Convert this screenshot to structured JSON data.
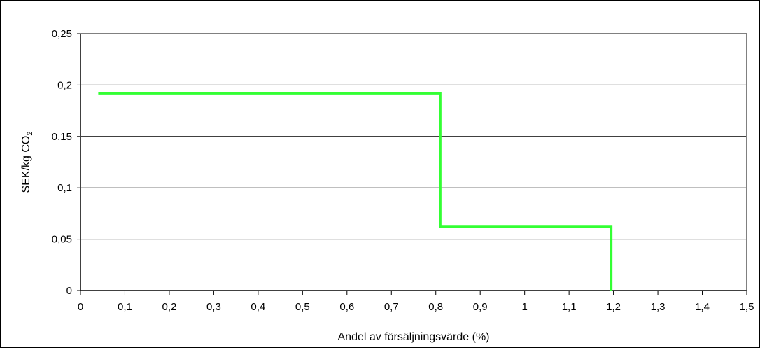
{
  "chart_data": {
    "type": "line",
    "xlabel": "Andel av försäljningsvärde (%)",
    "ylabel_main": "SEK/kg CO",
    "ylabel_sub": "2",
    "xlim": [
      0,
      1.5
    ],
    "ylim": [
      0,
      0.25
    ],
    "x_ticks": [
      0,
      0.1,
      0.2,
      0.3,
      0.4,
      0.5,
      0.6,
      0.7,
      0.8,
      0.9,
      1.0,
      1.1,
      1.2,
      1.3,
      1.4,
      1.5
    ],
    "x_tick_labels": [
      "0",
      "0,1",
      "0,2",
      "0,3",
      "0,4",
      "0,5",
      "0,6",
      "0,7",
      "0,8",
      "0,9",
      "1",
      "1,1",
      "1,2",
      "1,3",
      "1,4",
      "1,5"
    ],
    "y_ticks": [
      0,
      0.05,
      0.1,
      0.15,
      0.2,
      0.25
    ],
    "y_tick_labels": [
      "0",
      "0,05",
      "0,1",
      "0,15",
      "0,2",
      "0,25"
    ],
    "grid": "horizontal",
    "series": [
      {
        "color": "#33ff33",
        "points": [
          {
            "x": 0.04,
            "y": 0.192
          },
          {
            "x": 0.81,
            "y": 0.192
          },
          {
            "x": 0.81,
            "y": 0.062
          },
          {
            "x": 1.195,
            "y": 0.062
          },
          {
            "x": 1.195,
            "y": 0.0
          }
        ]
      }
    ]
  }
}
